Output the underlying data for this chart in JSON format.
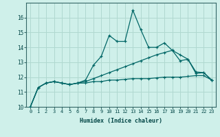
{
  "xlabel": "Humidex (Indice chaleur)",
  "background_color": "#cff0ea",
  "grid_color": "#b0d8d0",
  "line_color": "#006666",
  "xlim": [
    -0.5,
    23.5
  ],
  "ylim": [
    10,
    17
  ],
  "yticks": [
    10,
    11,
    12,
    13,
    14,
    15,
    16
  ],
  "xticks": [
    0,
    1,
    2,
    3,
    4,
    5,
    6,
    7,
    8,
    9,
    10,
    11,
    12,
    13,
    14,
    15,
    16,
    17,
    18,
    19,
    20,
    21,
    22,
    23
  ],
  "series1_x": [
    0,
    1,
    2,
    3,
    4,
    5,
    6,
    7,
    8,
    9,
    10,
    11,
    12,
    13,
    14,
    15,
    16,
    17,
    18,
    19,
    20,
    21,
    22,
    23
  ],
  "series1_y": [
    10.0,
    11.3,
    11.6,
    11.7,
    11.6,
    11.5,
    11.6,
    11.6,
    11.7,
    11.7,
    11.8,
    11.8,
    11.85,
    11.9,
    11.9,
    11.9,
    11.95,
    12.0,
    12.0,
    12.0,
    12.05,
    12.1,
    12.1,
    11.8
  ],
  "series2_x": [
    0,
    1,
    2,
    3,
    4,
    5,
    6,
    7,
    8,
    9,
    10,
    11,
    12,
    13,
    14,
    15,
    16,
    17,
    18,
    19,
    20,
    21,
    22,
    23
  ],
  "series2_y": [
    10.0,
    11.3,
    11.6,
    11.7,
    11.6,
    11.5,
    11.6,
    11.7,
    11.9,
    12.1,
    12.3,
    12.5,
    12.7,
    12.9,
    13.1,
    13.3,
    13.5,
    13.65,
    13.8,
    13.5,
    13.2,
    12.35,
    12.3,
    11.8
  ],
  "series3_x": [
    0,
    1,
    2,
    3,
    4,
    5,
    6,
    7,
    8,
    9,
    10,
    11,
    12,
    13,
    14,
    15,
    16,
    17,
    18,
    19,
    20,
    21,
    22,
    23
  ],
  "series3_y": [
    10.0,
    11.3,
    11.6,
    11.7,
    11.6,
    11.5,
    11.6,
    11.8,
    12.8,
    13.4,
    14.8,
    14.4,
    14.4,
    16.5,
    15.2,
    14.0,
    14.0,
    14.3,
    13.8,
    13.1,
    13.2,
    12.25,
    12.3,
    11.8
  ]
}
